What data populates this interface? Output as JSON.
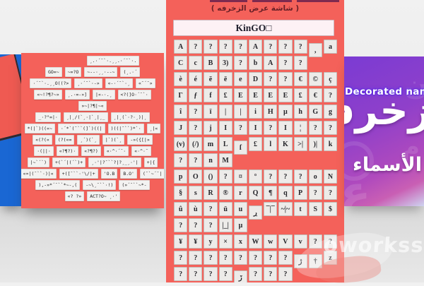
{
  "main_panel": {
    "title": "( شاشة عرض الزخرفه )",
    "display_name": "KinGO□",
    "grid": {
      "rows": [
        [
          "A",
          "?",
          "?",
          "?",
          "?",
          "A",
          "?",
          "?",
          "?",
          {
            "t": ",",
            "d": 1
          },
          "a"
        ],
        [
          "C",
          "c",
          "B",
          "3)",
          "?",
          "b",
          "A",
          "?",
          "?"
        ],
        [
          "è",
          "é",
          "ē",
          "ë",
          "e",
          "D",
          "?",
          "?",
          "€",
          "©",
          "ç"
        ],
        [
          "Γ",
          "ƒ",
          "f",
          "£",
          "E",
          "E",
          "E",
          "E",
          "£",
          "€",
          "?"
        ],
        [
          "î",
          "?",
          "ï",
          "|",
          "|",
          "i",
          "H",
          "µ",
          "h",
          "G",
          "g"
        ],
        [
          "J",
          "?",
          "j",
          "I",
          "?",
          "I",
          "?",
          "I",
          "¦",
          "?",
          "?"
        ],
        [
          "(v)",
          "(/)",
          "m",
          "L",
          {
            "t": "ſ",
            "d": 1
          },
          "£",
          "l",
          "K",
          ">|",
          ")|",
          "k"
        ],
        [
          "?",
          "?",
          "n",
          "M"
        ],
        [
          "p",
          "O",
          "()",
          "?",
          "¤",
          "°",
          "?",
          "?",
          "?",
          "o",
          "N"
        ],
        [
          "§",
          "s",
          "R",
          "®",
          "r",
          "Q",
          "¶",
          "q",
          "P",
          "?",
          "?"
        ],
        [
          "û",
          "ù",
          "?",
          "ü",
          "u",
          {
            "t": "ڔ",
            "d": 1
          },
          "¯|¯",
          "~|~",
          "t",
          "S",
          "$"
        ],
        [
          "?",
          "?",
          "?",
          "|_|",
          "µ"
        ],
        [
          "¥",
          "¥",
          "y",
          "×",
          "x",
          "W",
          "w",
          "V",
          "v",
          "?",
          "?"
        ],
        [
          "?",
          "?",
          "?",
          "?",
          "?",
          "?",
          "?",
          "?",
          {
            "t": "ژ",
            "d": 1
          },
          {
            "t": "†",
            "d": 1
          },
          "z"
        ],
        [
          "?",
          "?",
          "?",
          "?",
          {
            "t": "ڒ",
            "d": 1
          },
          "?",
          "?",
          "?"
        ]
      ]
    }
  },
  "left_panel": {
    "rows": [
      [
        "¸.·´¯`·.¸¸.·´¯`·."
      ],
      [
        "GO=~",
        "~=?O",
        "~--·¸¸·--~",
        "(¸.·´"
      ],
      [
        "·´¯`·.¸¸O((?>",
        "¸·´¯`·-»",
        "«-·´¯`·¸",
        "«¯´¯»"
      ],
      [
        "«~!?¶?~»",
        "¸.·=-»]",
        "|«-·.¸",
        "<?(]O·´¯`·"
      ],
      [
        "»~|?¶|~«"
      ],
      [
        "_·?°=|·",
        "¸|¸/(`¸·|`¸|¸_",
        "¸|¸(`·?·¸)|¸"
      ],
      [
        "*(|`)((«~",
        "·´*`(¯``(]`)((|",
        ")((|¯``)*`·",
        "¸|«"
      ],
      [
        "«(?(«",
        "(?(«=",
        "¸´)(`¸",
        "|`)(`¸",
        "-»({[|»"
      ],
      [
        "·(||·",
        "«?¶?)·",
        "«?¶?)",
        "«·^·´¯·",
        "«·^·¯"
      ],
      [
        "|~`´`)",
        "+(`´|(´`)+",
        "¸·'|?¯``?|?¸_¸·'|",
        "+|{"
      ],
      [
        "«¤|(¯``·)|«",
        "+([¯``·'\\/|+",
        "'O.B",
        "B.O'",
        "(¯`~´¯|"
      ],
      [
        ")‚-»*´¯``*~-‚(",
        "-~\\¸¯``·!)",
        "(»´¯``~*-"
      ],
      [
        "«? ?»",
        "ACT?O~ ¸·'"
      ]
    ]
  },
  "promo_panel": {
    "subtitle": "Decorated names",
    "title_large": "زخرفة",
    "title_small": "الأسماء",
    "bg_glyphs": [
      "ع",
      "ن",
      "م"
    ]
  },
  "watermark": {
    "text": "oworkss"
  }
}
